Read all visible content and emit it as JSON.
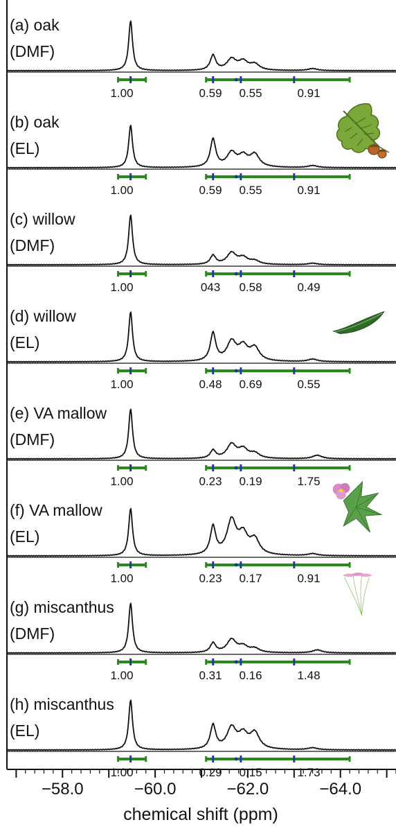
{
  "chart_data": {
    "type": "line",
    "xlabel": "chemical shift (ppm)",
    "x_reversed": true,
    "xlim": [
      -56.8,
      -65.2
    ],
    "x_ticks": [
      -58.0,
      -60.0,
      -62.0,
      -64.0
    ],
    "x_tick_labels": [
      "−58.0",
      "−60.0",
      "−62.0",
      "−64.0"
    ],
    "integration_regions": [
      [
        -59.2,
        -59.8
      ],
      [
        -61.1,
        -64.2
      ]
    ],
    "series": [
      {
        "line1": "(a) oak",
        "line2": "(DMF)",
        "integrals": [
          "1.00",
          "0.59",
          "0.55",
          "0.91"
        ],
        "icon": "oak-leaf-icon",
        "peaks": [
          [
            -59.47,
            1.0
          ],
          [
            -61.25,
            0.3
          ],
          [
            -61.65,
            0.22
          ],
          [
            -61.9,
            0.17
          ],
          [
            -62.15,
            0.12
          ],
          [
            -63.4,
            0.04
          ]
        ]
      },
      {
        "line1": "(b) oak",
        "line2": "(EL)",
        "integrals": [
          "1.00",
          "0.59",
          "0.55",
          "0.91"
        ],
        "icon": "oak-leaf-icon",
        "peaks": [
          [
            -59.47,
            0.85
          ],
          [
            -61.25,
            0.56
          ],
          [
            -61.65,
            0.28
          ],
          [
            -61.9,
            0.21
          ],
          [
            -62.15,
            0.25
          ],
          [
            -63.4,
            0.04
          ]
        ]
      },
      {
        "line1": "(c) willow",
        "line2": "(DMF)",
        "integrals": [
          "1.00",
          "043",
          "0.58",
          "0.49"
        ],
        "icon": "willow-leaf-icon",
        "peaks": [
          [
            -59.47,
            1.0
          ],
          [
            -61.25,
            0.18
          ],
          [
            -61.65,
            0.23
          ],
          [
            -61.9,
            0.13
          ],
          [
            -62.15,
            0.07
          ],
          [
            -63.4,
            0.03
          ]
        ]
      },
      {
        "line1": "(d) willow",
        "line2": "(EL)",
        "integrals": [
          "1.00",
          "0.48",
          "0.69",
          "0.55"
        ],
        "icon": "willow-leaf-icon",
        "peaks": [
          [
            -59.47,
            1.0
          ],
          [
            -61.25,
            0.56
          ],
          [
            -61.65,
            0.38
          ],
          [
            -61.9,
            0.28
          ],
          [
            -62.15,
            0.26
          ],
          [
            -63.4,
            0.05
          ]
        ]
      },
      {
        "line1": "(e) VA mallow",
        "line2": "(DMF)",
        "integrals": [
          "1.00",
          "0.23",
          "0.19",
          "1.75"
        ],
        "icon": "mallow-flower-icon",
        "peaks": [
          [
            -59.47,
            1.0
          ],
          [
            -61.25,
            0.16
          ],
          [
            -61.65,
            0.28
          ],
          [
            -61.9,
            0.18
          ],
          [
            -62.15,
            0.1
          ],
          [
            -63.5,
            0.07
          ]
        ]
      },
      {
        "line1": "(f) VA mallow",
        "line2": "(EL)",
        "integrals": [
          "1.00",
          "0.23",
          "0.17",
          "0.91"
        ],
        "icon": "mallow-flower-icon",
        "peaks": [
          [
            -59.47,
            0.95
          ],
          [
            -61.25,
            0.56
          ],
          [
            -61.65,
            0.68
          ],
          [
            -61.9,
            0.38
          ],
          [
            -62.15,
            0.3
          ],
          [
            -63.4,
            0.04
          ]
        ]
      },
      {
        "line1": "(g) miscanthus",
        "line2": "(DMF)",
        "integrals": [
          "1.00",
          "0.31",
          "0.16",
          "1.48"
        ],
        "icon": "miscanthus-icon",
        "peaks": [
          [
            -59.47,
            1.0
          ],
          [
            -61.25,
            0.19
          ],
          [
            -61.65,
            0.26
          ],
          [
            -61.9,
            0.12
          ],
          [
            -62.15,
            0.08
          ],
          [
            -63.5,
            0.06
          ]
        ]
      },
      {
        "line1": "(h) miscanthus",
        "line2": "(EL)",
        "integrals": [
          "1.00",
          "0.29",
          "0.15",
          "1.73"
        ],
        "icon": "miscanthus-icon",
        "peaks": [
          [
            -59.47,
            1.0
          ],
          [
            -61.25,
            0.48
          ],
          [
            -61.65,
            0.42
          ],
          [
            -61.9,
            0.28
          ],
          [
            -62.15,
            0.32
          ],
          [
            -63.4,
            0.04
          ]
        ]
      }
    ]
  }
}
